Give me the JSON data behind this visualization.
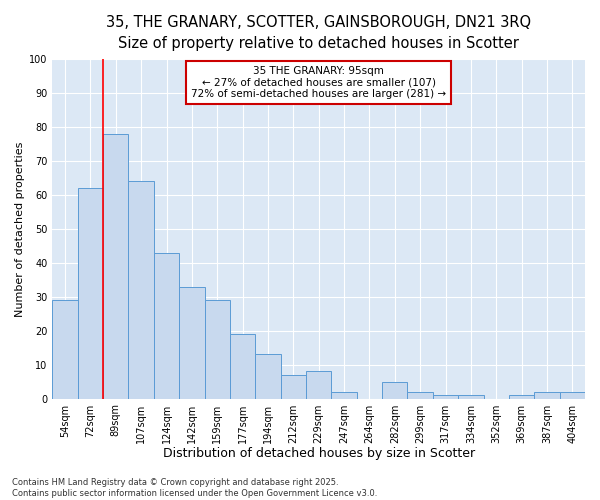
{
  "title_line1": "35, THE GRANARY, SCOTTER, GAINSBOROUGH, DN21 3RQ",
  "title_line2": "Size of property relative to detached houses in Scotter",
  "xlabel": "Distribution of detached houses by size in Scotter",
  "ylabel": "Number of detached properties",
  "categories": [
    "54sqm",
    "72sqm",
    "89sqm",
    "107sqm",
    "124sqm",
    "142sqm",
    "159sqm",
    "177sqm",
    "194sqm",
    "212sqm",
    "229sqm",
    "247sqm",
    "264sqm",
    "282sqm",
    "299sqm",
    "317sqm",
    "334sqm",
    "352sqm",
    "369sqm",
    "387sqm",
    "404sqm"
  ],
  "values": [
    29,
    62,
    78,
    64,
    43,
    33,
    29,
    19,
    13,
    7,
    8,
    2,
    0,
    5,
    2,
    1,
    1,
    0,
    1,
    2,
    2
  ],
  "bar_color": "#c8d9ee",
  "bar_edge_color": "#5b9bd5",
  "background_color": "#dce8f5",
  "red_line_x": 1.5,
  "annotation_title": "35 THE GRANARY: 95sqm",
  "annotation_line2": "← 27% of detached houses are smaller (107)",
  "annotation_line3": "72% of semi-detached houses are larger (281) →",
  "annotation_box_color": "#cc0000",
  "ylim": [
    0,
    100
  ],
  "yticks": [
    0,
    10,
    20,
    30,
    40,
    50,
    60,
    70,
    80,
    90,
    100
  ],
  "footnote": "Contains HM Land Registry data © Crown copyright and database right 2025.\nContains public sector information licensed under the Open Government Licence v3.0.",
  "title_fontsize": 10.5,
  "subtitle_fontsize": 9.5,
  "tick_fontsize": 7,
  "xlabel_fontsize": 9,
  "ylabel_fontsize": 8,
  "annotation_fontsize": 7.5,
  "footnote_fontsize": 6
}
